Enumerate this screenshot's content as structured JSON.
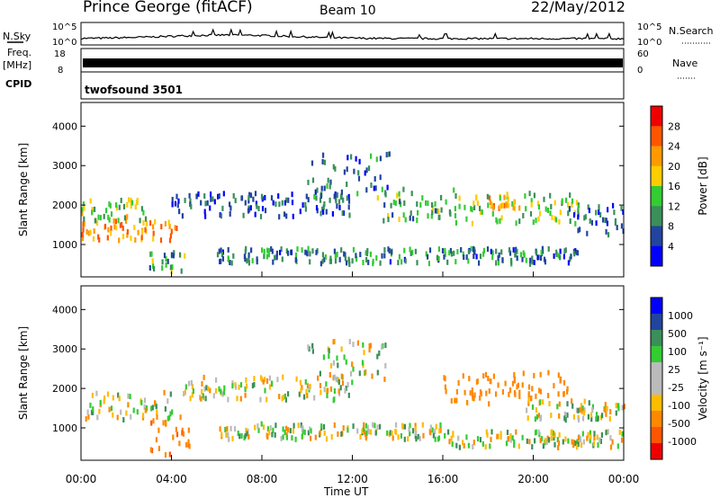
{
  "header": {
    "station": "Prince George (fitACF)",
    "beam": "Beam 10",
    "date": "22/May/2012"
  },
  "side_labels": {
    "nsky": "N.Sky",
    "freq": "Freq.",
    "freq_unit": "[MHz]",
    "cpid": "CPID",
    "nsearch": "N.Search",
    "nave": "Nave",
    "nsky_tick_top": "10^5",
    "nsky_tick_bottom": "10^0",
    "freq_tick_top": "18",
    "freq_tick_bottom": "8",
    "nave_tick_top": "60",
    "nave_tick_bottom": "0"
  },
  "cpid_text": "twofsound 3501",
  "colors": {
    "power_scale": [
      "#0000ff",
      "#22449e",
      "#3a8f5a",
      "#33cc33",
      "#ffcc00",
      "#ff9900",
      "#ff5500",
      "#ee0000"
    ],
    "velocity_scale": [
      "#ee0000",
      "#ff5500",
      "#ff8800",
      "#ffbb00",
      "#bbbbbb",
      "#bbbbbb",
      "#33cc33",
      "#3a8f5a",
      "#22449e",
      "#0000ff"
    ]
  },
  "chart_data": [
    {
      "type": "heatmap",
      "name": "power",
      "ylabel": "Slant Range [km]",
      "xlabel": "",
      "ylim": [
        180,
        4600
      ],
      "yticks": [
        1000,
        2000,
        3000,
        4000
      ],
      "colorbar": {
        "label": "Power [dB]",
        "ticks": [
          "4",
          "8",
          "12",
          "16",
          "20",
          "24",
          "28"
        ],
        "range": [
          0,
          32
        ]
      },
      "bands": [
        {
          "t": [
            0.0,
            4.2
          ],
          "range": [
            1100,
            1600
          ],
          "level": 22
        },
        {
          "t": [
            0.0,
            3.0
          ],
          "range": [
            1600,
            2150
          ],
          "level": 15
        },
        {
          "t": [
            3.0,
            4.6
          ],
          "range": [
            300,
            800
          ],
          "level": 12
        },
        {
          "t": [
            4.0,
            12.0
          ],
          "range": [
            1700,
            2300
          ],
          "level": 6
        },
        {
          "t": [
            10.0,
            13.6
          ],
          "range": [
            2200,
            3300
          ],
          "level": 8
        },
        {
          "t": [
            6.0,
            22.0
          ],
          "range": [
            500,
            900
          ],
          "level": 9
        },
        {
          "t": [
            13.0,
            16.6
          ],
          "range": [
            1600,
            2400
          ],
          "level": 13
        },
        {
          "t": [
            16.5,
            22.0
          ],
          "range": [
            1500,
            2300
          ],
          "level": 14
        },
        {
          "t": [
            18.0,
            19.5
          ],
          "range": [
            1900,
            2200
          ],
          "level": 22
        },
        {
          "t": [
            21.5,
            24.0
          ],
          "range": [
            1200,
            2000
          ],
          "level": 6
        }
      ]
    },
    {
      "type": "heatmap",
      "name": "velocity",
      "ylabel": "Slant Range [km]",
      "xlabel": "Time UT",
      "ylim": [
        180,
        4600
      ],
      "yticks": [
        1000,
        2000,
        3000,
        4000
      ],
      "colorbar": {
        "label": "Velocity [m s⁻¹]",
        "ticks": [
          "-1000",
          "-500",
          "-100",
          "-25",
          "25",
          "100",
          "500",
          "1000"
        ]
      },
      "bands": [
        {
          "t": [
            0.0,
            4.0
          ],
          "range": [
            1200,
            1900
          ],
          "vel": 0
        },
        {
          "t": [
            3.0,
            4.8
          ],
          "range": [
            300,
            1300
          ],
          "vel": -400
        },
        {
          "t": [
            4.5,
            12.0
          ],
          "range": [
            1700,
            2300
          ],
          "vel": 0
        },
        {
          "t": [
            10.0,
            13.5
          ],
          "range": [
            2200,
            3200
          ],
          "vel": 0
        },
        {
          "t": [
            6.0,
            16.0
          ],
          "range": [
            700,
            1100
          ],
          "vel": 0
        },
        {
          "t": [
            16.0,
            21.5
          ],
          "range": [
            1600,
            2400
          ],
          "vel": -300
        },
        {
          "t": [
            19.5,
            24.0
          ],
          "range": [
            1200,
            1700
          ],
          "vel": 0
        },
        {
          "t": [
            16.0,
            24.0
          ],
          "range": [
            500,
            900
          ],
          "vel": 0
        }
      ]
    }
  ],
  "x_axis": {
    "label": "Time UT",
    "ticks": [
      "00:00",
      "04:00",
      "08:00",
      "12:00",
      "16:00",
      "20:00",
      "00:00"
    ]
  }
}
